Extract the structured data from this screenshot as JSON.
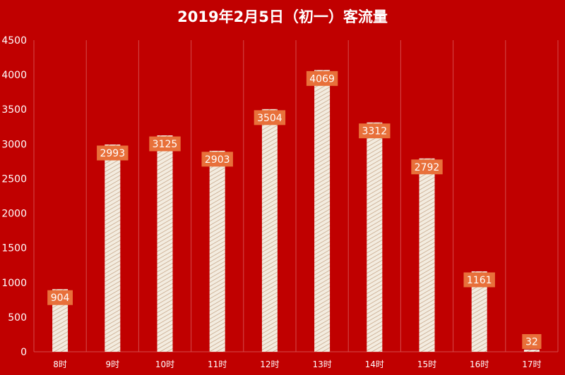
{
  "chart_data": {
    "type": "bar",
    "title": "2019年2月5日（初一）客流量",
    "categories": [
      "8时",
      "9时",
      "10时",
      "11时",
      "12时",
      "13时",
      "14时",
      "15时",
      "16时",
      "17时"
    ],
    "values": [
      904,
      2993,
      3125,
      2903,
      3504,
      4069,
      3312,
      2792,
      1161,
      32
    ],
    "ylim": [
      0,
      4500
    ],
    "yticks": [
      "0",
      "500",
      "1000",
      "1500",
      "2000",
      "2500",
      "3000",
      "3500",
      "4000",
      "4500"
    ],
    "xlabel": "",
    "ylabel": "",
    "grid": "vertical",
    "legend": "none",
    "colors": {
      "background": "#c00000",
      "bar_fill": "#f3ece0",
      "bar_hatch": "#c8a88a",
      "label_box": "#e8703a",
      "label_text": "#ffffff",
      "text": "#ffffff",
      "grid": "#d44a4a"
    }
  }
}
